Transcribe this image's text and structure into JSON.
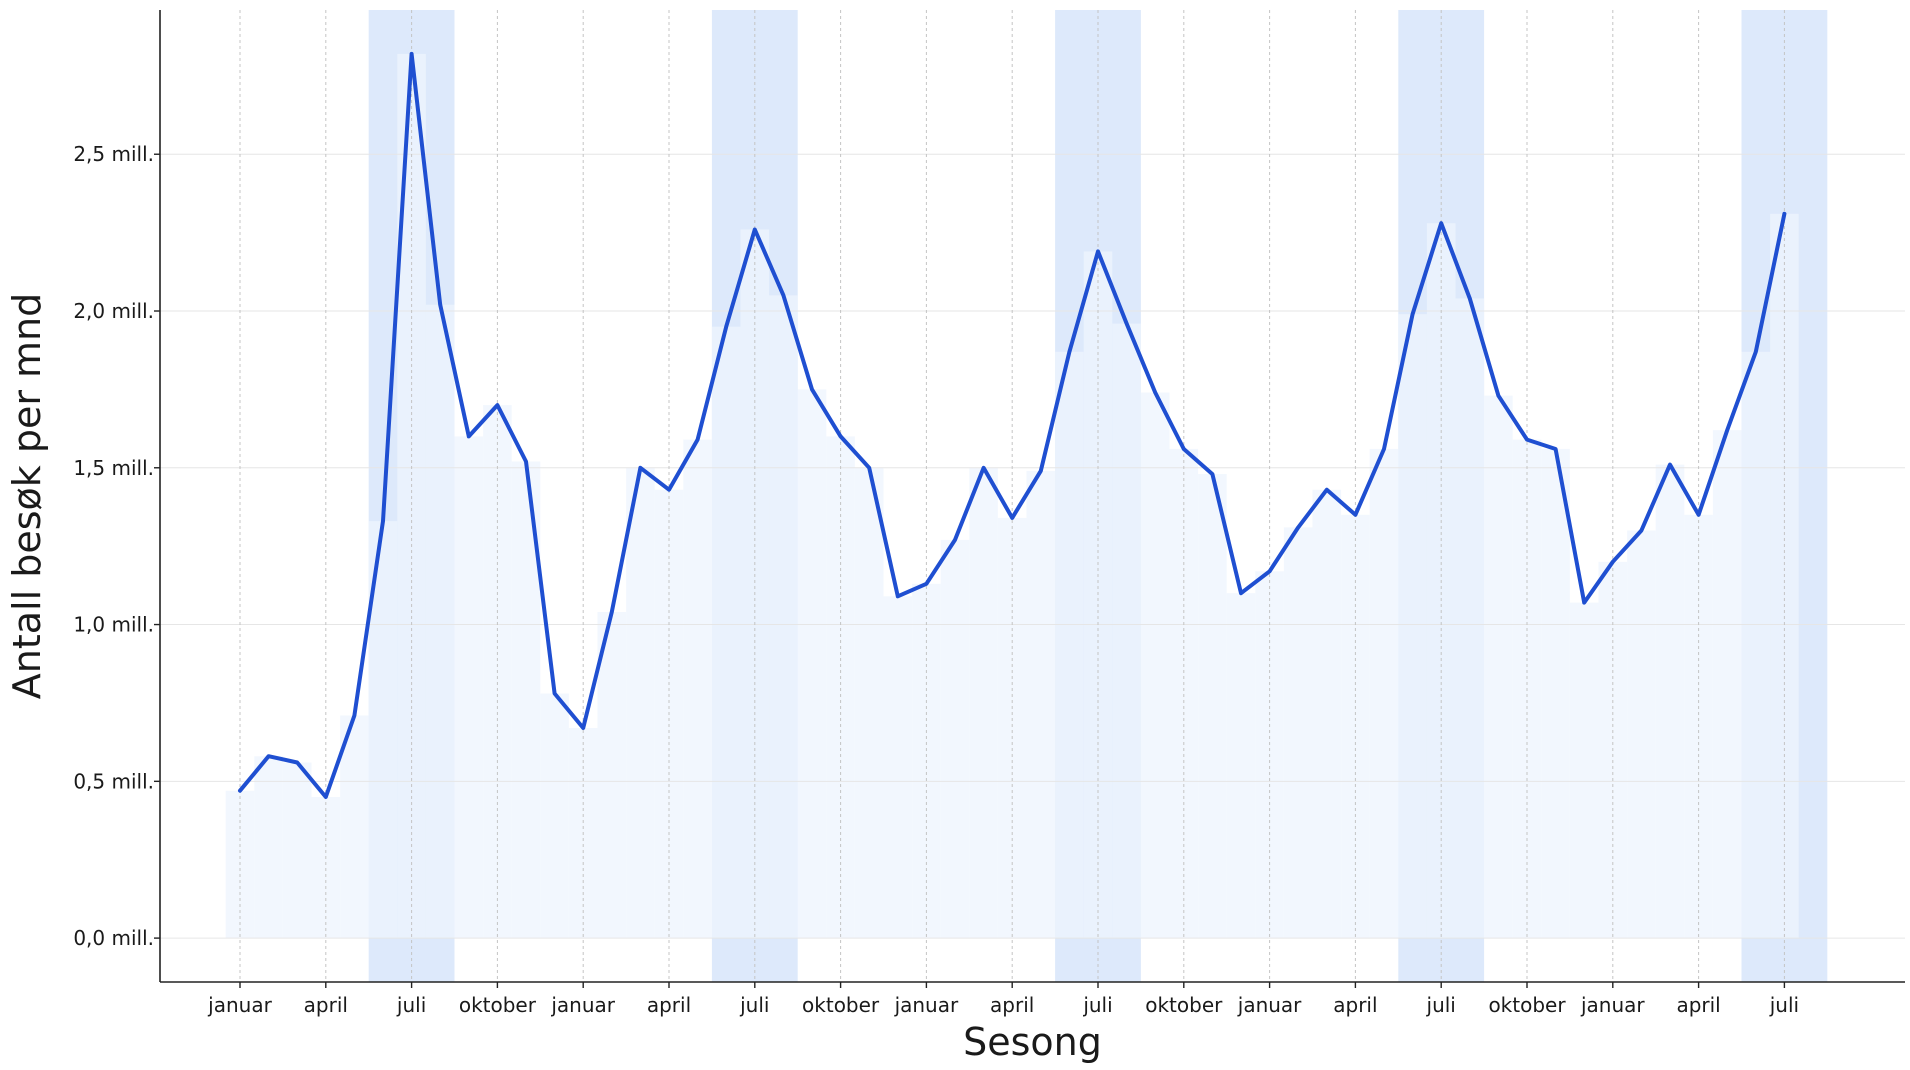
{
  "chart_data": {
    "type": "line",
    "title": "",
    "xlabel": "Sesong",
    "ylabel": "Antall besøk per mnd",
    "x_tick_labels": [
      "januar",
      "april",
      "juli",
      "oktober",
      "januar",
      "april",
      "juli",
      "oktober",
      "januar",
      "april",
      "juli",
      "oktober",
      "januar",
      "april",
      "juli",
      "oktober",
      "januar",
      "april",
      "juli"
    ],
    "y_ticks": [
      0.0,
      0.5,
      1.0,
      1.5,
      2.0,
      2.5
    ],
    "y_tick_labels": [
      "0,0 mill.",
      "0,5 mill.",
      "1,0 mill.",
      "1,5 mill.",
      "2,0 mill.",
      "2,5 mill."
    ],
    "ylim": [
      -0.14,
      2.96
    ],
    "unit": "mill.",
    "summer_months_highlighted": [
      "juni",
      "juli",
      "august"
    ],
    "grid": true,
    "colors": {
      "line": "#1f4fd1",
      "area": "#eef4fd",
      "summer_band": "#dde9fb",
      "grid": "#d9d9d9"
    },
    "series": [
      {
        "values": [
          0.47,
          0.58,
          0.56,
          0.45,
          0.71,
          1.33,
          2.82,
          2.02,
          1.6,
          1.7,
          1.52,
          0.78,
          0.67,
          1.04,
          1.5,
          1.43,
          1.59,
          1.95,
          2.26,
          2.05,
          1.75,
          1.6,
          1.5,
          1.09,
          1.13,
          1.27,
          1.5,
          1.34,
          1.49,
          1.87,
          2.19,
          1.96,
          1.74,
          1.56,
          1.48,
          1.1,
          1.17,
          1.31,
          1.43,
          1.35,
          1.56,
          1.99,
          2.28,
          2.04,
          1.73,
          1.59,
          1.56,
          1.07,
          1.2,
          1.3,
          1.51,
          1.35,
          1.62,
          1.87,
          2.31
        ]
      }
    ]
  }
}
